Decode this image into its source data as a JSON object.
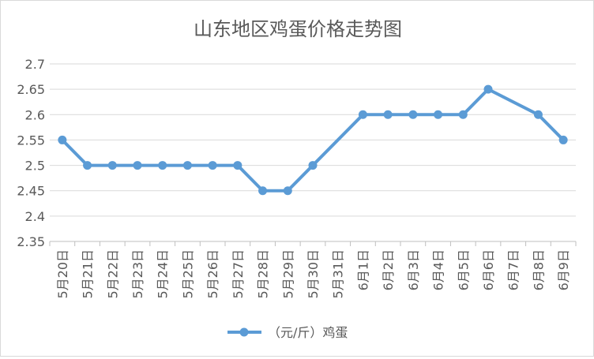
{
  "chart_data": {
    "type": "line",
    "title": "山东地区鸡蛋价格走势图",
    "xlabel": "",
    "ylabel": "",
    "categories": [
      "5月20日",
      "5月21日",
      "5月22日",
      "5月23日",
      "5月24日",
      "5月25日",
      "5月26日",
      "5月27日",
      "5月28日",
      "5月29日",
      "5月30日",
      "5月31日",
      "6月1日",
      "6月2日",
      "6月3日",
      "6月4日",
      "6月5日",
      "6月6日",
      "6月7日",
      "6月8日",
      "6月9日"
    ],
    "series": [
      {
        "name": "（元/斤）鸡蛋",
        "color": "#5b9bd5",
        "values": [
          2.55,
          2.5,
          2.5,
          2.5,
          2.5,
          2.5,
          2.5,
          2.5,
          2.45,
          2.45,
          2.5,
          null,
          2.6,
          2.6,
          2.6,
          2.6,
          2.6,
          2.65,
          null,
          2.6,
          2.55
        ]
      }
    ],
    "ylim": [
      2.35,
      2.7
    ],
    "yticks": [
      "2.7",
      "2.65",
      "2.6",
      "2.55",
      "2.5",
      "2.45",
      "2.4",
      "2.35"
    ],
    "ytick_values": [
      2.7,
      2.65,
      2.6,
      2.55,
      2.5,
      2.45,
      2.4,
      2.35
    ],
    "grid": true,
    "legend": "bottom-center"
  }
}
